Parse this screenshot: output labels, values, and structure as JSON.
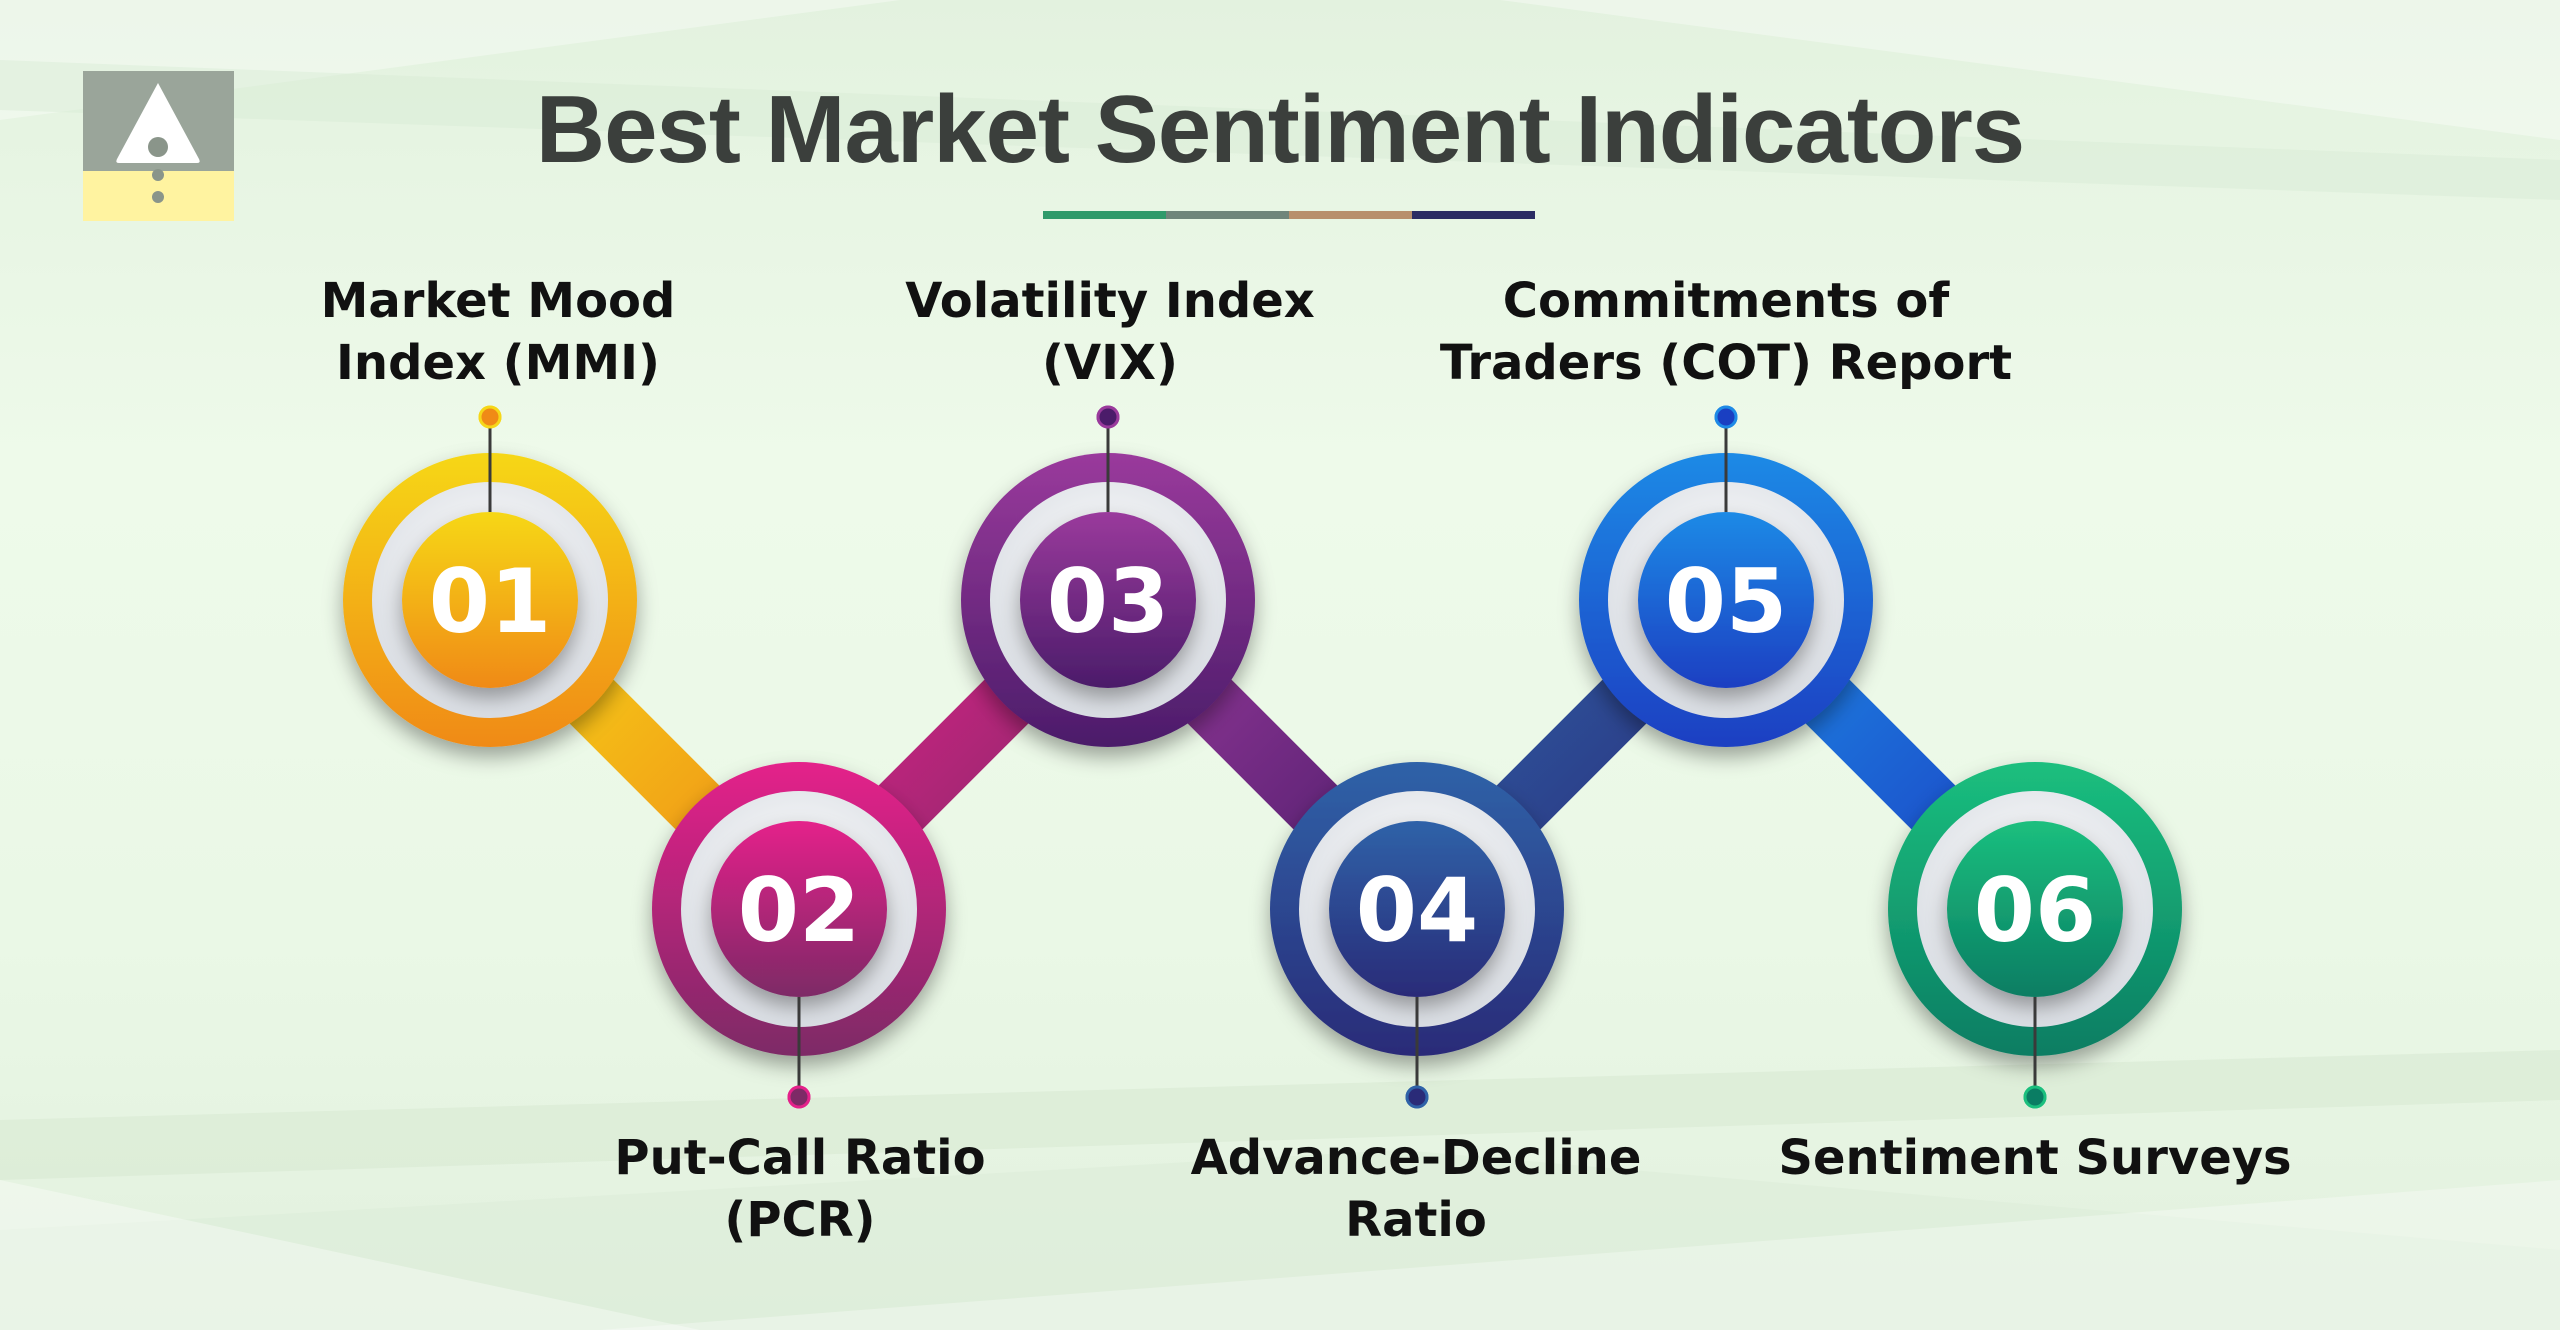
{
  "title": "Best Market Sentiment Indicators",
  "title_underline_colors": [
    "#2f9a6a",
    "#6f857a",
    "#b8906c",
    "#2b2d63"
  ],
  "steps": [
    {
      "number": "01",
      "label_lines": [
        "Market Mood",
        "Index (MMI)"
      ],
      "color_light": "#f6d718",
      "color_dark": "#f08a16"
    },
    {
      "number": "02",
      "label_lines": [
        "Put-Call Ratio",
        "(PCR)"
      ],
      "color_light": "#e4218a",
      "color_dark": "#7d2a66"
    },
    {
      "number": "03",
      "label_lines": [
        "Volatility Index",
        "(VIX)"
      ],
      "color_light": "#9a3a9c",
      "color_dark": "#4b1c6a"
    },
    {
      "number": "04",
      "label_lines": [
        "Advance-Decline",
        "Ratio"
      ],
      "color_light": "#2f62a8",
      "color_dark": "#2a2b78"
    },
    {
      "number": "05",
      "label_lines": [
        "Commitments of",
        "Traders (COT) Report"
      ],
      "color_light": "#1e8ae6",
      "color_dark": "#1a3fc2"
    },
    {
      "number": "06",
      "label_lines": [
        "Sentiment Surveys"
      ],
      "color_light": "#1bbf7e",
      "color_dark": "#0a7d63"
    }
  ],
  "logo": {
    "top_color": "#9aa59a",
    "bottom_color": "#fff3a0",
    "mark_color": "#ffffff",
    "dot_color": "#8a958a"
  }
}
